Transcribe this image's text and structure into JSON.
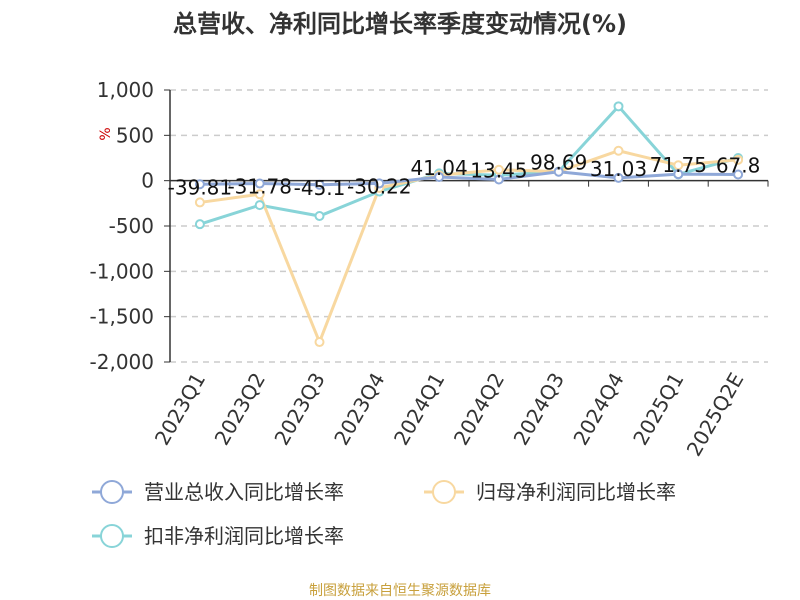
{
  "chart_data": {
    "type": "line",
    "title": "总营收、净利同比增长率季度变动情况(%)",
    "unit_label": "%",
    "categories": [
      "2023Q1",
      "2023Q2",
      "2023Q3",
      "2023Q4",
      "2024Q1",
      "2024Q2",
      "2024Q3",
      "2024Q4",
      "2025Q1",
      "2025Q2E"
    ],
    "ylim": [
      -2000,
      1000
    ],
    "yticks": [
      1000,
      500,
      0,
      -500,
      -1000,
      -1500,
      -2000
    ],
    "ytick_labels": [
      "1,000",
      "500",
      "0",
      "-500",
      "-1,000",
      "-1,500",
      "-2,000"
    ],
    "grid": true,
    "legend_position": "bottom",
    "series": [
      {
        "name": "营业总收入同比增长率",
        "color": "#8fa8d8",
        "values": [
          -39.81,
          -31.78,
          -45.1,
          -30.22,
          41.04,
          13.45,
          98.69,
          31.03,
          71.75,
          67.8
        ],
        "labels": [
          "-39.81",
          "-31.78",
          "-45.1",
          "-30.22",
          "41.04",
          "13.45",
          "98.69",
          "31.03",
          "71.75",
          "67.8"
        ]
      },
      {
        "name": "归母净利润同比增长率",
        "color": "#f8d8a0",
        "values": [
          -240,
          -150,
          -1780,
          -80,
          60,
          120,
          100,
          330,
          170,
          230
        ]
      },
      {
        "name": "扣非净利润同比增长率",
        "color": "#88d4d8",
        "values": [
          -480,
          -270,
          -390,
          -120,
          80,
          60,
          100,
          820,
          70,
          250
        ]
      }
    ],
    "source": "制图数据来自恒生聚源数据库"
  }
}
